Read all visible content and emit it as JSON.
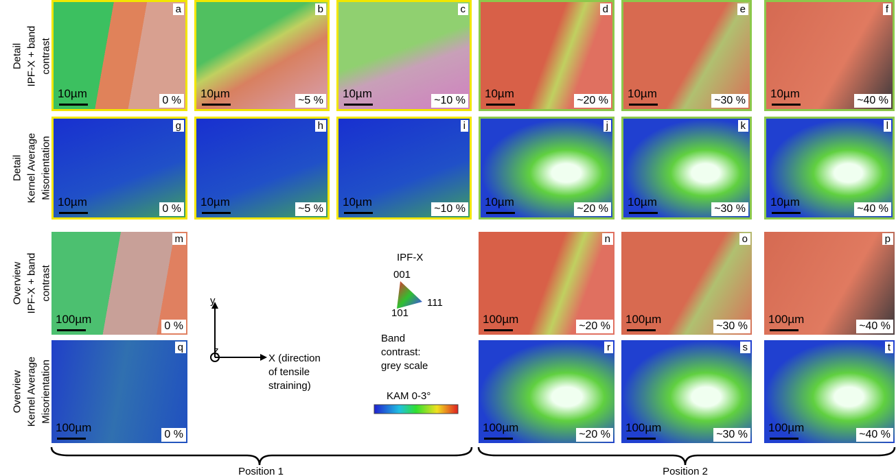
{
  "row_labels": [
    [
      "Detail",
      "IPF-X + band",
      "contrast"
    ],
    [
      "Detail",
      "Kernel Average",
      "Misorientation"
    ],
    [
      "Overview",
      "IPF-X + band",
      "contrast"
    ],
    [
      "Overview",
      "Kernel Average",
      "Misorientation"
    ]
  ],
  "panels": [
    {
      "letter": "a",
      "scale": "10µm",
      "strain": "0 %",
      "frame": "#f2e600"
    },
    {
      "letter": "b",
      "scale": "10µm",
      "strain": "~5 %",
      "frame": "#f2e600"
    },
    {
      "letter": "c",
      "scale": "10µm",
      "strain": "~10 %",
      "frame": "#f2e600"
    },
    {
      "letter": "d",
      "scale": "10µm",
      "strain": "~20 %",
      "frame": "#8cc84b"
    },
    {
      "letter": "e",
      "scale": "10µm",
      "strain": "~30 %",
      "frame": "#8cc84b"
    },
    {
      "letter": "f",
      "scale": "10µm",
      "strain": "~40 %",
      "frame": "#8cc84b"
    },
    {
      "letter": "g",
      "scale": "10µm",
      "strain": "0 %",
      "frame": "#f2e600"
    },
    {
      "letter": "h",
      "scale": "10µm",
      "strain": "~5 %",
      "frame": "#f2e600"
    },
    {
      "letter": "i",
      "scale": "10µm",
      "strain": "~10 %",
      "frame": "#f2e600"
    },
    {
      "letter": "j",
      "scale": "10µm",
      "strain": "~20 %",
      "frame": "#8cc84b"
    },
    {
      "letter": "k",
      "scale": "10µm",
      "strain": "~30 %",
      "frame": "#8cc84b"
    },
    {
      "letter": "l",
      "scale": "10µm",
      "strain": "~40 %",
      "frame": "#8cc84b"
    },
    {
      "letter": "m",
      "scale": "100µm",
      "strain": "0 %"
    },
    {
      "letter": "n",
      "scale": "100µm",
      "strain": "~20 %"
    },
    {
      "letter": "o",
      "scale": "100µm",
      "strain": "~30 %"
    },
    {
      "letter": "p",
      "scale": "100µm",
      "strain": "~40 %"
    },
    {
      "letter": "q",
      "scale": "100µm",
      "strain": "0 %"
    },
    {
      "letter": "r",
      "scale": "100µm",
      "strain": "~20 %"
    },
    {
      "letter": "s",
      "scale": "100µm",
      "strain": "~30 %"
    },
    {
      "letter": "t",
      "scale": "100µm",
      "strain": "~40 %"
    }
  ],
  "axes": {
    "y": "y",
    "z": "z",
    "x": [
      "X (direction",
      "of tensile",
      "straining)"
    ]
  },
  "legend": {
    "ipf_title": "IPF-X",
    "corners": [
      "001",
      "101",
      "111"
    ],
    "band": [
      "Band",
      "contrast:",
      "grey scale"
    ],
    "kam": "KAM 0-3°"
  },
  "positions": [
    "Position 1",
    "Position 2"
  ]
}
